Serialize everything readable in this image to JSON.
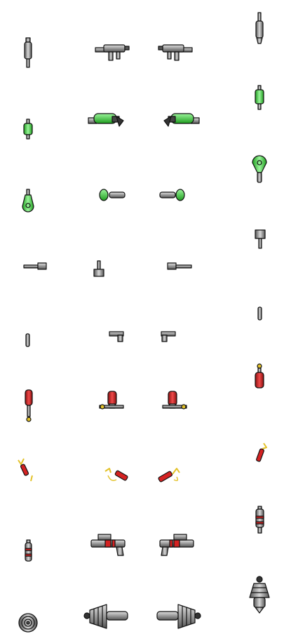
{
  "sheet": {
    "background": "#ffffff",
    "rows": [
      {
        "items": [
          "flashlight-icon",
          "submachine-gun-icon",
          "submachine-gun-icon",
          "flashlight-icon"
        ]
      },
      {
        "items": [
          "green-cell-icon",
          "green-plasma-rifle-icon",
          "green-plasma-rifle-icon",
          "green-cell-icon"
        ]
      },
      {
        "items": [
          "green-emitter-icon",
          "green-emitter-icon",
          "green-emitter-icon",
          "green-emitter-icon"
        ]
      },
      {
        "items": [
          "scraper-icon",
          "scraper-icon",
          "scraper-icon",
          "scraper-icon"
        ]
      },
      {
        "items": [
          "pistol-icon",
          "pistol-icon",
          "pistol-icon",
          "pistol-icon"
        ]
      },
      {
        "items": [
          "red-grenade-icon",
          "red-grenade-icon",
          "red-grenade-icon",
          "red-grenade-icon"
        ]
      },
      {
        "items": [
          "dynamite-icon",
          "dynamite-icon",
          "dynamite-icon",
          "dynamite-icon"
        ]
      },
      {
        "items": [
          "red-striped-canister-icon",
          "red-striped-blaster-icon",
          "red-striped-blaster-icon",
          "red-striped-canister-icon"
        ]
      },
      {
        "items": [
          "coiled-drill-icon",
          "coiled-drill-icon",
          "coiled-drill-icon",
          "coiled-drill-icon"
        ]
      }
    ],
    "colors": {
      "outline": "#111111",
      "metal": "#8a8a8a",
      "metal_light": "#cfcfcf",
      "green": "#3fcf3f",
      "green_dark": "#1c8a1c",
      "red": "#d42222",
      "yellow": "#e3c22a"
    }
  }
}
